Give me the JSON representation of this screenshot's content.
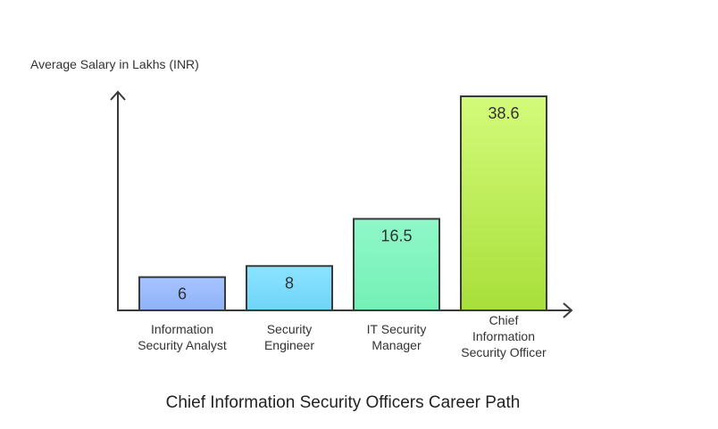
{
  "chart_data": {
    "type": "bar",
    "title": "Chief Information Security Officers Career Path",
    "ylabel": "Average Salary in Lakhs (INR)",
    "xlabel": "",
    "categories": [
      [
        "Information",
        "Security Analyst"
      ],
      [
        "Security",
        "Engineer"
      ],
      [
        "IT Security",
        "Manager"
      ],
      [
        "Chief",
        "Information",
        "Security Officer"
      ]
    ],
    "values": [
      6,
      8,
      16.5,
      38.6
    ],
    "value_labels": [
      "6",
      "8",
      "16.5",
      "38.6"
    ],
    "ylim": [
      0,
      38.6
    ],
    "grid": false,
    "bar_colors": [
      [
        "#a6c4ff",
        "#8fb2f8"
      ],
      [
        "#8ce4ff",
        "#6fd4f7"
      ],
      [
        "#8ff8c8",
        "#74f0b6"
      ],
      [
        "#d3fb7a",
        "#a8df3a"
      ]
    ],
    "stroke_color": "#3a3a3a"
  }
}
